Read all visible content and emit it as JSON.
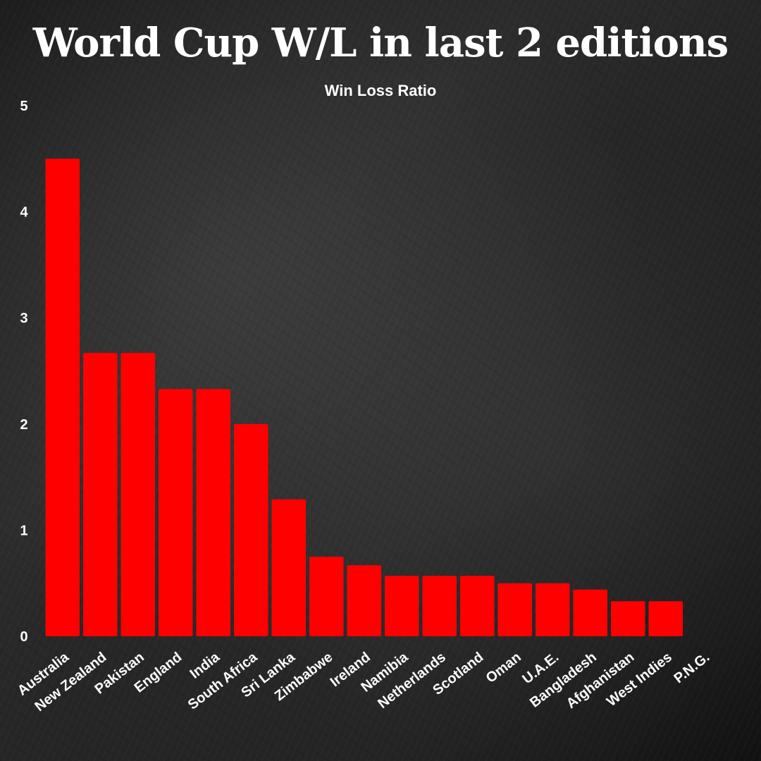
{
  "chart_data": {
    "type": "bar",
    "title": "World Cup W/L in last 2 editions",
    "subtitle": "Win Loss Ratio",
    "xlabel": "",
    "ylabel": "",
    "ylim": [
      0,
      5
    ],
    "yticks": [
      "0",
      "1",
      "2",
      "3",
      "4",
      "5"
    ],
    "grid": false,
    "bar_color": "#ff0000",
    "text_color": "#ffffff",
    "categories": [
      "Australia",
      "New Zealand",
      "Pakistan",
      "England",
      "India",
      "South Africa",
      "Sri Lanka",
      "Zimbabwe",
      "Ireland",
      "Namibia",
      "Netherlands",
      "Scotland",
      "Oman",
      "U.A.E.",
      "Bangladesh",
      "Afghanistan",
      "West Indies",
      "P.N.G."
    ],
    "values": [
      4.5,
      2.67,
      2.67,
      2.33,
      2.33,
      2.0,
      1.29,
      0.75,
      0.67,
      0.57,
      0.57,
      0.57,
      0.5,
      0.5,
      0.44,
      0.33,
      0.33,
      0
    ]
  }
}
